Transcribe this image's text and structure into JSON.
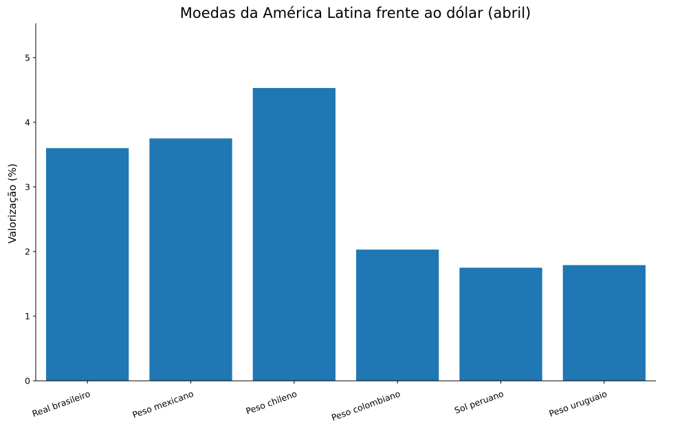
{
  "chart_data": {
    "type": "bar",
    "title": "Moedas da América Latina frente ao dólar (abril)",
    "xlabel": "",
    "ylabel": "Valorização (%)",
    "categories": [
      "Real brasileiro",
      "Peso mexicano",
      "Peso chileno",
      "Peso colombiano",
      "Sol peruano",
      "Peso uruguaio"
    ],
    "values": [
      3.6,
      3.75,
      4.53,
      2.03,
      1.75,
      1.79
    ],
    "ylim": [
      0,
      5.53
    ],
    "yticks": [
      0,
      1,
      2,
      3,
      4,
      5
    ],
    "grid": false,
    "legend": "none",
    "colors": {
      "bar": "#1f77b4",
      "axis": "#000000",
      "text": "#000000"
    }
  }
}
